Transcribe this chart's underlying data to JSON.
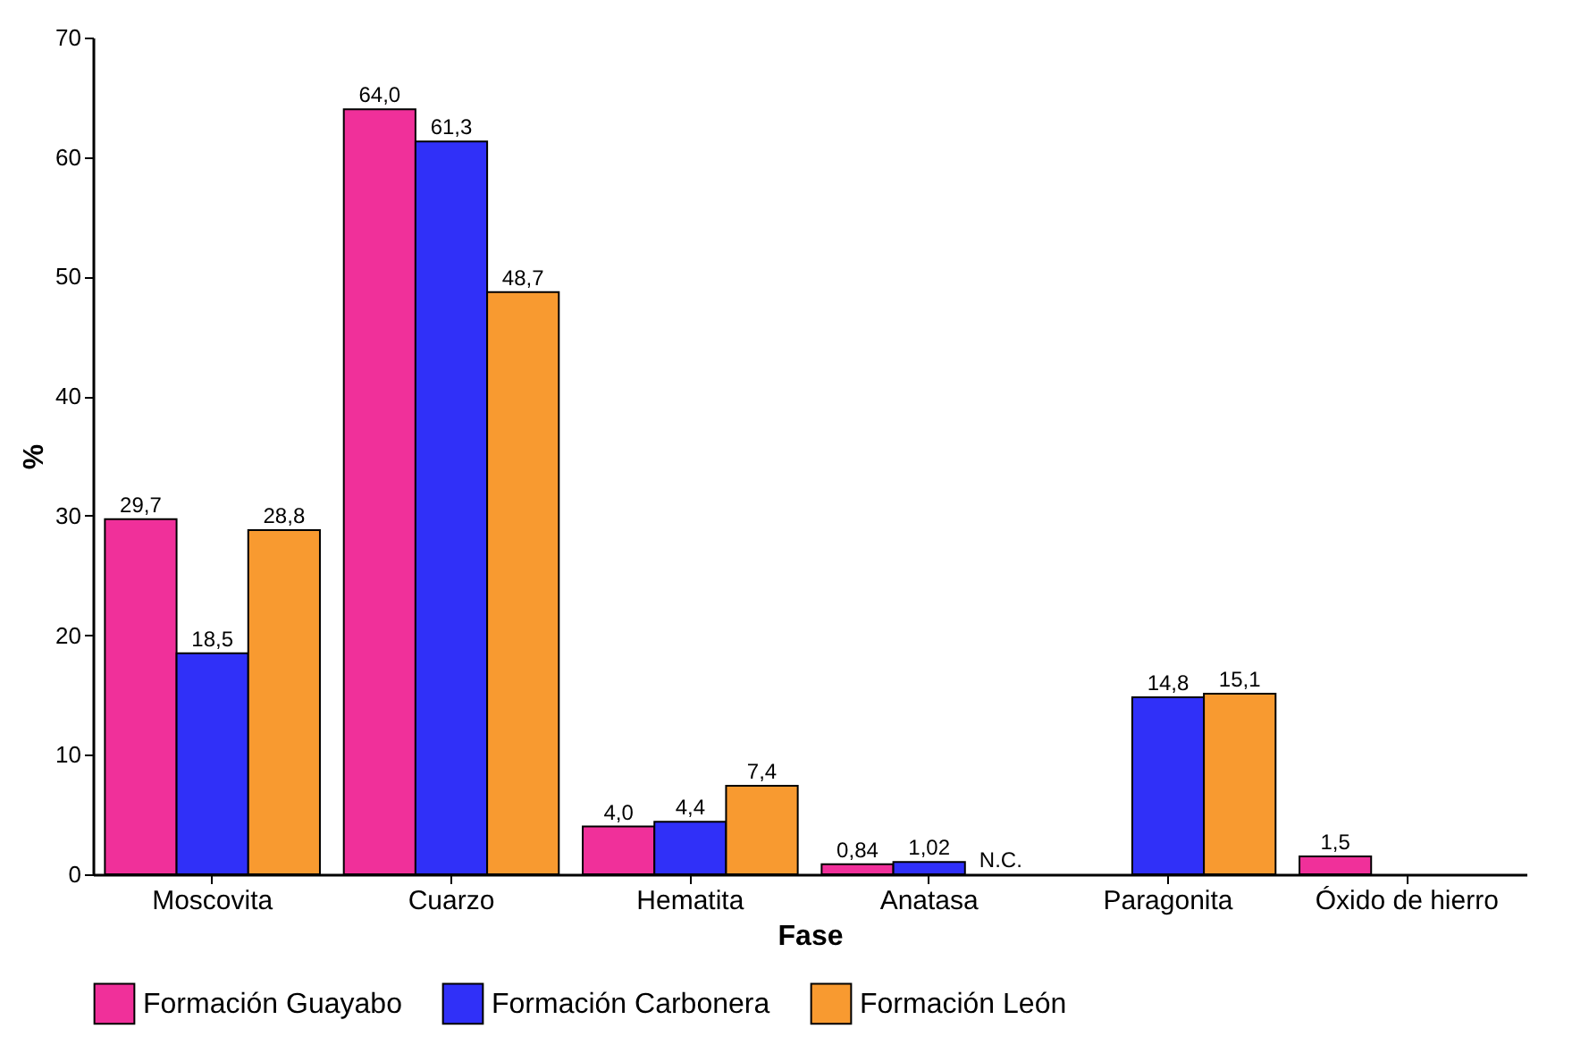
{
  "chart_data": {
    "type": "bar",
    "xlabel": "Fase",
    "ylabel": "%",
    "categories": [
      "Moscovita",
      "Cuarzo",
      "Hematita",
      "Anatasa",
      "Paragonita",
      "Óxido de hierro"
    ],
    "series": [
      {
        "name": "Formación Guayabo",
        "color": "#f0309a",
        "values": [
          29.7,
          64.0,
          4.0,
          0.84,
          null,
          1.5
        ],
        "value_labels": [
          "29,7",
          "64,0",
          "4,0",
          "0,84",
          null,
          "1,5"
        ]
      },
      {
        "name": "Formación Carbonera",
        "color": "#3030f8",
        "values": [
          18.5,
          61.3,
          4.4,
          1.02,
          14.8,
          null
        ],
        "value_labels": [
          "18,5",
          "61,3",
          "4,4",
          "1,02",
          "14,8",
          null
        ]
      },
      {
        "name": "Formación León",
        "color": "#f89a30",
        "values": [
          28.8,
          48.7,
          7.4,
          null,
          15.1,
          null
        ],
        "value_labels": [
          "28,8",
          "48,7",
          "7,4",
          "N.C.",
          "15,1",
          null
        ]
      }
    ],
    "ylim": [
      0,
      70
    ],
    "yticks": [
      0,
      10,
      20,
      30,
      40,
      50,
      60,
      70
    ],
    "grid": false,
    "legend": "bottom"
  }
}
